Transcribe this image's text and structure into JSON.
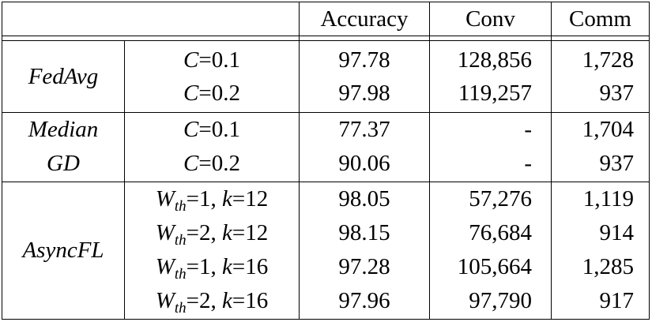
{
  "header": {
    "col1": "",
    "col2": "",
    "accuracy": "Accuracy",
    "conv": "Conv",
    "comm": "Comm"
  },
  "groups": [
    {
      "name_lines": [
        "FedAvg"
      ],
      "rows": [
        {
          "setting_var": "C",
          "setting_val": "=0.1",
          "accuracy": "97.78",
          "conv": "128,856",
          "comm": "1,728"
        },
        {
          "setting_var": "C",
          "setting_val": "=0.2",
          "accuracy": "97.98",
          "conv": "119,257",
          "comm": "937"
        }
      ]
    },
    {
      "name_lines": [
        "Median",
        "GD"
      ],
      "rows": [
        {
          "setting_var": "C",
          "setting_val": "=0.1",
          "accuracy": "77.37",
          "conv": "-",
          "comm": "1,704"
        },
        {
          "setting_var": "C",
          "setting_val": "=0.2",
          "accuracy": "90.06",
          "conv": "-",
          "comm": "937"
        }
      ]
    },
    {
      "name_lines": [
        "AsyncFL"
      ],
      "rows": [
        {
          "w": "W",
          "w_sub": "th",
          "w_val": "=1, ",
          "k": "k",
          "k_val": "=12",
          "accuracy": "98.05",
          "conv": "57,276",
          "comm": "1,119"
        },
        {
          "w": "W",
          "w_sub": "th",
          "w_val": "=2, ",
          "k": "k",
          "k_val": "=12",
          "accuracy": "98.15",
          "conv": "76,684",
          "comm": "914"
        },
        {
          "w": "W",
          "w_sub": "th",
          "w_val": "=1, ",
          "k": "k",
          "k_val": "=16",
          "accuracy": "97.28",
          "conv": "105,664",
          "comm": "1,285"
        },
        {
          "w": "W",
          "w_sub": "th",
          "w_val": "=2, ",
          "k": "k",
          "k_val": "=16",
          "accuracy": "97.96",
          "conv": "97,790",
          "comm": "917"
        }
      ]
    }
  ]
}
